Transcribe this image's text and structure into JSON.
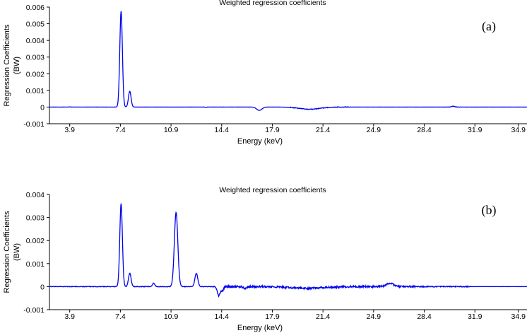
{
  "chart_data": [
    {
      "type": "line",
      "title": "Weighted regression coefficients",
      "panel_label": "(a)",
      "xlabel": "Energy (keV)",
      "ylabel": "Regression Coefficients",
      "ylabel2": "(BW)",
      "xlim": [
        2.5,
        35.5
      ],
      "ylim": [
        -0.001,
        0.006
      ],
      "xticks": [
        "3.9",
        "7.4",
        "10.9",
        "14.4",
        "17.9",
        "21.4",
        "24.9",
        "28.4",
        "31.9",
        "34.9"
      ],
      "yticks": [
        "0.006",
        "0.005",
        "0.004",
        "0.003",
        "0.002",
        "0.001",
        "0",
        "-0.001"
      ],
      "color": "#0000ee",
      "noise_level": 6e-06,
      "noise_segments": [
        {
          "x": [
            2.5,
            7.0
          ],
          "amp": 4e-06
        },
        {
          "x": [
            12.0,
            16.5
          ],
          "amp": 5e-06
        },
        {
          "x": [
            19.0,
            23.3
          ],
          "amp": 1.8e-05
        },
        {
          "x": [
            29.8,
            31.0
          ],
          "amp": 1e-05
        }
      ],
      "peaks": [
        {
          "x": 7.45,
          "y": 0.00575,
          "w": 0.09
        },
        {
          "x": 8.05,
          "y": 0.00095,
          "w": 0.09
        },
        {
          "x": 3.9,
          "y": 1e-05,
          "w": 0.05
        },
        {
          "x": 13.3,
          "y": -2e-05,
          "w": 0.05
        },
        {
          "x": 17.0,
          "y": -0.0002,
          "w": 0.18
        },
        {
          "x": 20.5,
          "y": -0.00013,
          "w": 0.7
        },
        {
          "x": 30.4,
          "y": 5e-05,
          "w": 0.1
        }
      ]
    },
    {
      "type": "line",
      "title": "Weighted regression coefficients",
      "panel_label": "(b)",
      "xlabel": "Energy (keV)",
      "ylabel": "Regression Coefficients",
      "ylabel2": "(BW)",
      "xlim": [
        2.5,
        35.5
      ],
      "ylim": [
        -0.001,
        0.004
      ],
      "xticks": [
        "3.9",
        "7.4",
        "10.9",
        "14.4",
        "17.9",
        "21.4",
        "24.9",
        "28.4",
        "31.9",
        "34.9"
      ],
      "yticks": [
        "0.004",
        "0.003",
        "0.002",
        "0.001",
        "0",
        "-0.001"
      ],
      "color": "#0000ee",
      "noise_level": 8e-06,
      "noise_segments": [
        {
          "x": [
            2.5,
            14.0
          ],
          "amp": 1.2e-05
        },
        {
          "x": [
            14.0,
            27.8
          ],
          "amp": 4e-05
        },
        {
          "x": [
            27.8,
            31.5
          ],
          "amp": 2e-05
        }
      ],
      "peaks": [
        {
          "x": 7.45,
          "y": 0.0036,
          "w": 0.09
        },
        {
          "x": 8.05,
          "y": 0.00058,
          "w": 0.09
        },
        {
          "x": 9.7,
          "y": 0.00015,
          "w": 0.08
        },
        {
          "x": 11.25,
          "y": 0.00322,
          "w": 0.12
        },
        {
          "x": 12.65,
          "y": 0.00058,
          "w": 0.1
        },
        {
          "x": 14.2,
          "y": -0.0004,
          "w": 0.1
        },
        {
          "x": 14.45,
          "y": -0.00018,
          "w": 0.08
        },
        {
          "x": 16.0,
          "y": -7e-05,
          "w": 0.1
        },
        {
          "x": 20.3,
          "y": -7e-05,
          "w": 1.2
        },
        {
          "x": 26.05,
          "y": 0.00015,
          "w": 0.25
        }
      ]
    }
  ]
}
